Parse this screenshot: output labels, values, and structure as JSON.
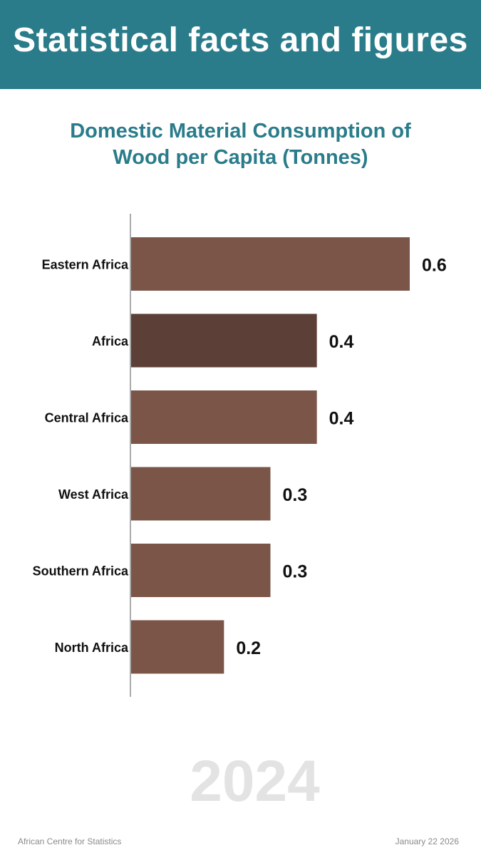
{
  "header": {
    "title": "Statistical facts and figures"
  },
  "chart_data": {
    "type": "bar",
    "orientation": "horizontal",
    "title_lines": [
      "Domestic Material Consumption of",
      "Wood per Capita (Tonnes)"
    ],
    "categories": [
      "Eastern Africa",
      "Africa",
      "Central Africa",
      "West Africa",
      "Southern Africa",
      "North Africa"
    ],
    "values": [
      0.6,
      0.4,
      0.4,
      0.3,
      0.3,
      0.2
    ],
    "data_labels": [
      "0.6",
      "0.4",
      "0.4",
      "0.3",
      "0.3",
      "0.2"
    ],
    "highlight_category": "Africa",
    "colors": {
      "bar": "#7a5548",
      "highlight": "#5c4037",
      "axis": "#555555",
      "title": "#2a7c8a"
    },
    "xlim": [
      0,
      0.6
    ],
    "grid": false,
    "legend": "none"
  },
  "year": "2024",
  "footer": {
    "source": "African Centre for Statistics",
    "date": "January 22 2026"
  }
}
